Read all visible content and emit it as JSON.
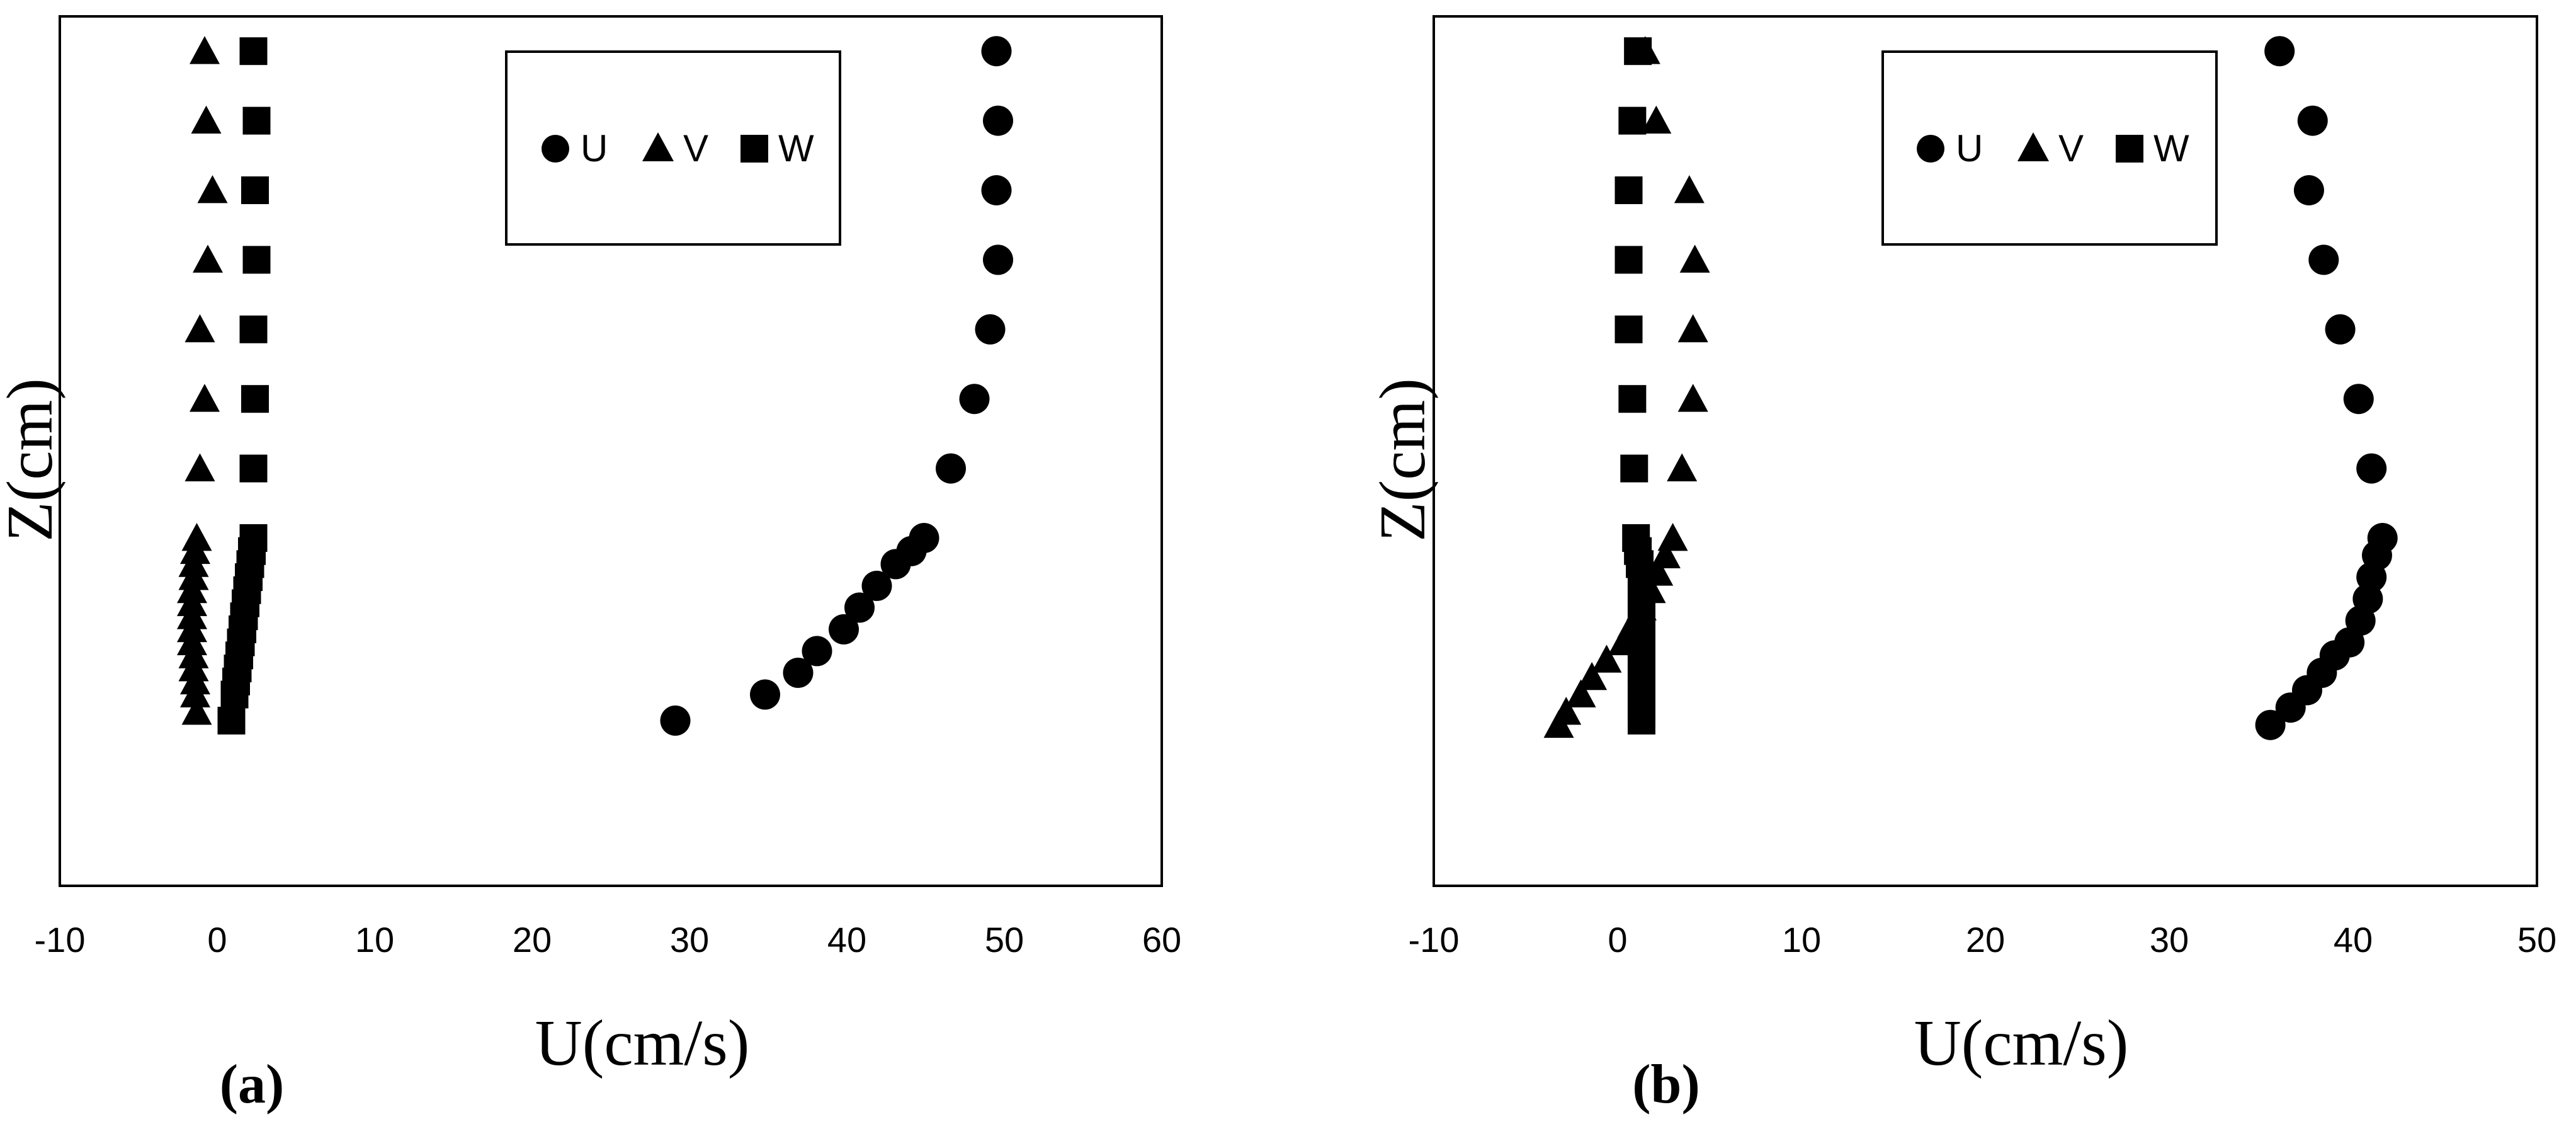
{
  "chart_data": [
    {
      "type": "scatter",
      "panel_label": "(a)",
      "xlabel": "U(cm/s)",
      "ylabel": "Z(cm)",
      "xlim": [
        -10,
        60
      ],
      "x_ticks": [
        "-10",
        "0",
        "10",
        "20",
        "30",
        "40",
        "50",
        "60"
      ],
      "y_ticks_shown": false,
      "grid": false,
      "legend_position": "top-center",
      "legend": [
        "U",
        "V",
        "W"
      ],
      "series": [
        {
          "name": "U",
          "marker": "circle",
          "points": [
            [
              49.5,
              0.96
            ],
            [
              49.6,
              0.88
            ],
            [
              49.5,
              0.8
            ],
            [
              49.6,
              0.72
            ],
            [
              49.1,
              0.64
            ],
            [
              48.1,
              0.56
            ],
            [
              46.6,
              0.48
            ],
            [
              44.9,
              0.4
            ],
            [
              44.1,
              0.385
            ],
            [
              43.1,
              0.37
            ],
            [
              41.9,
              0.345
            ],
            [
              40.8,
              0.32
            ],
            [
              39.8,
              0.295
            ],
            [
              38.1,
              0.27
            ],
            [
              36.9,
              0.245
            ],
            [
              34.8,
              0.22
            ],
            [
              29.1,
              0.19
            ]
          ]
        },
        {
          "name": "V",
          "marker": "triangle",
          "points": [
            [
              -0.8,
              0.96
            ],
            [
              -0.7,
              0.88
            ],
            [
              -0.3,
              0.8
            ],
            [
              -0.6,
              0.72
            ],
            [
              -1.1,
              0.64
            ],
            [
              -0.8,
              0.56
            ],
            [
              -1.1,
              0.48
            ],
            [
              -1.3,
              0.4
            ],
            [
              -1.4,
              0.385
            ],
            [
              -1.5,
              0.37
            ],
            [
              -1.5,
              0.355
            ],
            [
              -1.6,
              0.34
            ],
            [
              -1.6,
              0.325
            ],
            [
              -1.6,
              0.31
            ],
            [
              -1.6,
              0.295
            ],
            [
              -1.6,
              0.28
            ],
            [
              -1.5,
              0.265
            ],
            [
              -1.5,
              0.25
            ],
            [
              -1.4,
              0.235
            ],
            [
              -1.4,
              0.22
            ],
            [
              -1.3,
              0.2
            ]
          ]
        },
        {
          "name": "W",
          "marker": "square",
          "points": [
            [
              2.3,
              0.96
            ],
            [
              2.5,
              0.88
            ],
            [
              2.4,
              0.8
            ],
            [
              2.5,
              0.72
            ],
            [
              2.3,
              0.64
            ],
            [
              2.4,
              0.56
            ],
            [
              2.3,
              0.48
            ],
            [
              2.3,
              0.4
            ],
            [
              2.2,
              0.385
            ],
            [
              2.1,
              0.37
            ],
            [
              2.0,
              0.355
            ],
            [
              1.9,
              0.34
            ],
            [
              1.8,
              0.325
            ],
            [
              1.7,
              0.31
            ],
            [
              1.6,
              0.295
            ],
            [
              1.5,
              0.28
            ],
            [
              1.4,
              0.265
            ],
            [
              1.3,
              0.25
            ],
            [
              1.2,
              0.235
            ],
            [
              1.1,
              0.22
            ],
            [
              0.9,
              0.19
            ]
          ]
        }
      ]
    },
    {
      "type": "scatter",
      "panel_label": "(b)",
      "xlabel": "U(cm/s)",
      "ylabel": "Z(cm)",
      "xlim": [
        -10,
        50
      ],
      "x_ticks": [
        "-10",
        "0",
        "10",
        "20",
        "30",
        "40",
        "50"
      ],
      "y_ticks_shown": false,
      "grid": false,
      "legend_position": "top-center",
      "legend": [
        "U",
        "V",
        "W"
      ],
      "series": [
        {
          "name": "U",
          "marker": "circle",
          "points": [
            [
              36.0,
              0.96
            ],
            [
              37.8,
              0.88
            ],
            [
              37.6,
              0.8
            ],
            [
              38.4,
              0.72
            ],
            [
              39.3,
              0.64
            ],
            [
              40.3,
              0.56
            ],
            [
              41.0,
              0.48
            ],
            [
              41.6,
              0.4
            ],
            [
              41.3,
              0.38
            ],
            [
              41.0,
              0.355
            ],
            [
              40.8,
              0.33
            ],
            [
              40.4,
              0.305
            ],
            [
              39.8,
              0.28
            ],
            [
              39.0,
              0.265
            ],
            [
              38.3,
              0.245
            ],
            [
              37.5,
              0.225
            ],
            [
              36.6,
              0.205
            ],
            [
              35.5,
              0.185
            ]
          ]
        },
        {
          "name": "V",
          "marker": "triangle",
          "points": [
            [
              1.5,
              0.96
            ],
            [
              2.1,
              0.88
            ],
            [
              3.9,
              0.8
            ],
            [
              4.2,
              0.72
            ],
            [
              4.1,
              0.64
            ],
            [
              4.1,
              0.56
            ],
            [
              3.5,
              0.48
            ],
            [
              3.0,
              0.4
            ],
            [
              2.6,
              0.38
            ],
            [
              2.2,
              0.36
            ],
            [
              1.8,
              0.34
            ],
            [
              1.3,
              0.32
            ],
            [
              0.8,
              0.3
            ],
            [
              0.3,
              0.28
            ],
            [
              -0.6,
              0.26
            ],
            [
              -1.4,
              0.24
            ],
            [
              -2.0,
              0.22
            ],
            [
              -2.8,
              0.2
            ],
            [
              -3.2,
              0.185
            ]
          ]
        },
        {
          "name": "W",
          "marker": "square",
          "points": [
            [
              1.1,
              0.96
            ],
            [
              0.8,
              0.88
            ],
            [
              0.6,
              0.8
            ],
            [
              0.6,
              0.72
            ],
            [
              0.6,
              0.64
            ],
            [
              0.8,
              0.56
            ],
            [
              0.9,
              0.48
            ],
            [
              1.0,
              0.4
            ],
            [
              1.1,
              0.385
            ],
            [
              1.2,
              0.37
            ],
            [
              1.3,
              0.355
            ],
            [
              1.3,
              0.34
            ],
            [
              1.3,
              0.325
            ],
            [
              1.3,
              0.31
            ],
            [
              1.3,
              0.295
            ],
            [
              1.3,
              0.28
            ],
            [
              1.3,
              0.265
            ],
            [
              1.3,
              0.25
            ],
            [
              1.3,
              0.235
            ],
            [
              1.3,
              0.22
            ],
            [
              1.3,
              0.205
            ],
            [
              1.3,
              0.19
            ]
          ]
        }
      ]
    }
  ]
}
